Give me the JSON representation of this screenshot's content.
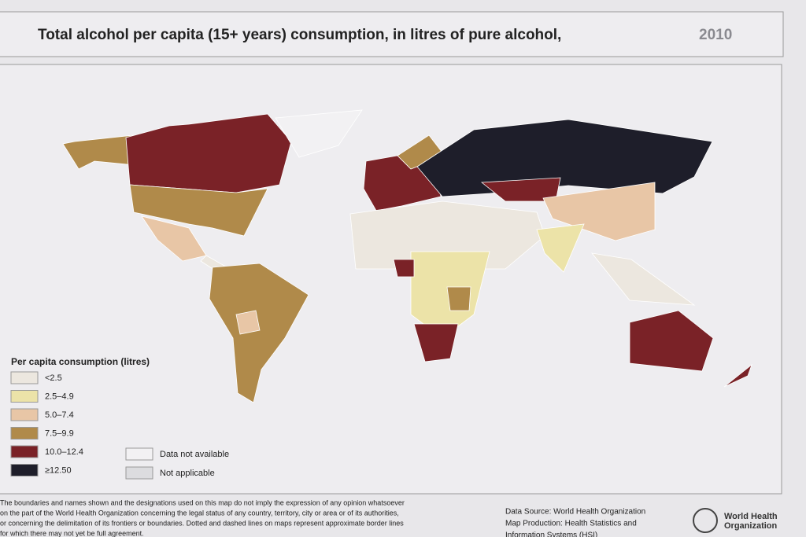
{
  "header": {
    "title": "Total alcohol per capita (15+ years) consumption, in litres of pure alcohol,",
    "year": "2010"
  },
  "legend": {
    "title": "Per capita consumption (litres)",
    "items": [
      {
        "label": "<2.5",
        "color": "#ece7df"
      },
      {
        "label": "2.5–4.9",
        "color": "#ece3a8"
      },
      {
        "label": "5.0–7.4",
        "color": "#e8c6a6"
      },
      {
        "label": "7.5–9.9",
        "color": "#b08a4a"
      },
      {
        "label": "10.0–12.4",
        "color": "#7a2227"
      },
      {
        "label": "≥12.50",
        "color": "#1e1e2a"
      }
    ],
    "other": [
      {
        "label": "Data not available",
        "color": "#f2f1f3"
      },
      {
        "label": "Not applicable",
        "color": "#dcdcdf"
      }
    ]
  },
  "disclaimer": [
    "The boundaries and names shown and the designations used on this map do not imply the expression of any opinion whatsoever",
    "on the part of the World Health Organization concerning the legal status of any country, territory, city or area or of its authorities,",
    "or concerning the delimitation of its frontiers or boundaries. Dotted and dashed lines on maps represent approximate border lines",
    "for which there may not yet be full agreement."
  ],
  "source": [
    "Data Source: World Health Organization",
    "Map Production: Health Statistics and",
    "Information Systems (HSI)"
  ],
  "organization": [
    "World Health",
    "Organization"
  ]
}
